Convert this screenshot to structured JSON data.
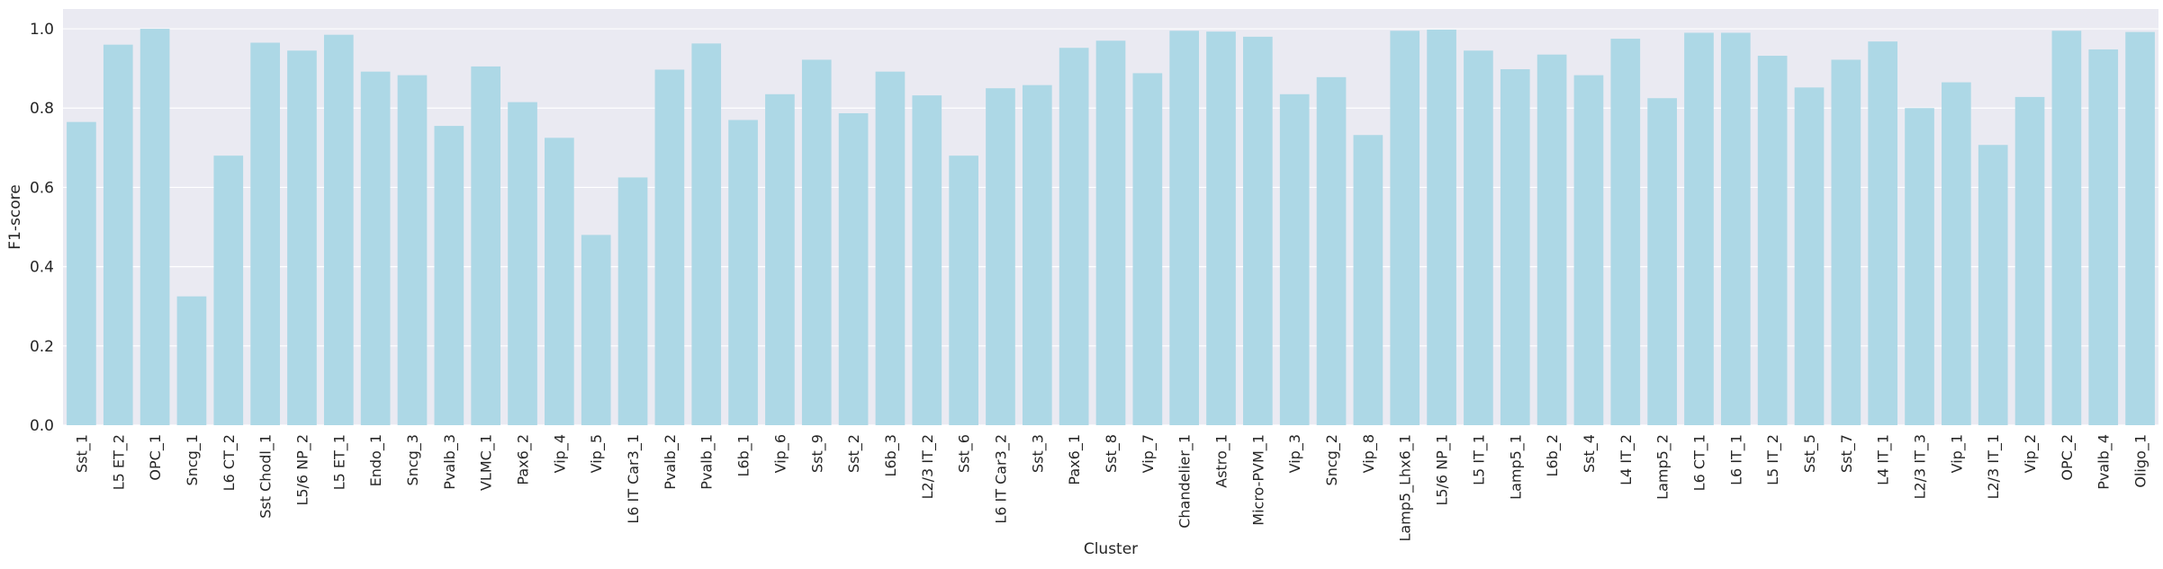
{
  "chart_data": {
    "type": "bar",
    "title": "",
    "xlabel": "Cluster",
    "ylabel": "F1-score",
    "ylim": [
      0,
      1.05
    ],
    "yticks": [
      0.0,
      0.2,
      0.4,
      0.6,
      0.8,
      1.0
    ],
    "ytick_labels": [
      "0.0",
      "0.2",
      "0.4",
      "0.6",
      "0.8",
      "1.0"
    ],
    "grid": true,
    "bar_color": "#add8e6",
    "background_color": "#eaeaf2",
    "categories": [
      "Sst_1",
      "L5 ET_2",
      "OPC_1",
      "Sncg_1",
      "L6 CT_2",
      "Sst Chodl_1",
      "L5/6 NP_2",
      "L5 ET_1",
      "Endo_1",
      "Sncg_3",
      "Pvalb_3",
      "VLMC_1",
      "Pax6_2",
      "Vip_4",
      "Vip_5",
      "L6 IT Car3_1",
      "Pvalb_2",
      "Pvalb_1",
      "L6b_1",
      "Vip_6",
      "Sst_9",
      "Sst_2",
      "L6b_3",
      "L2/3 IT_2",
      "Sst_6",
      "L6 IT Car3_2",
      "Sst_3",
      "Pax6_1",
      "Sst_8",
      "Vip_7",
      "Chandelier_1",
      "Astro_1",
      "Micro-PVM_1",
      "Vip_3",
      "Sncg_2",
      "Vip_8",
      "Lamp5_Lhx6_1",
      "L5/6 NP_1",
      "L5 IT_1",
      "Lamp5_1",
      "L6b_2",
      "Sst_4",
      "L4 IT_2",
      "Lamp5_2",
      "L6 CT_1",
      "L6 IT_1",
      "L5 IT_2",
      "Sst_5",
      "Sst_7",
      "L4 IT_1",
      "L2/3 IT_3",
      "Vip_1",
      "L2/3 IT_1",
      "Vip_2",
      "OPC_2",
      "Pvalb_4",
      "Oligo_1"
    ],
    "values": [
      0.765,
      0.96,
      1.0,
      0.325,
      0.68,
      0.965,
      0.945,
      0.985,
      0.892,
      0.883,
      0.755,
      0.905,
      0.815,
      0.725,
      0.48,
      0.625,
      0.897,
      0.963,
      0.77,
      0.835,
      0.922,
      0.787,
      0.892,
      0.832,
      0.68,
      0.85,
      0.858,
      0.952,
      0.97,
      0.888,
      0.995,
      0.993,
      0.98,
      0.835,
      0.878,
      0.732,
      0.995,
      0.998,
      0.945,
      0.898,
      0.935,
      0.883,
      0.975,
      0.825,
      0.99,
      0.99,
      0.932,
      0.852,
      0.922,
      0.968,
      0.8,
      0.865,
      0.707,
      0.828,
      0.995,
      0.948,
      0.992
    ]
  }
}
